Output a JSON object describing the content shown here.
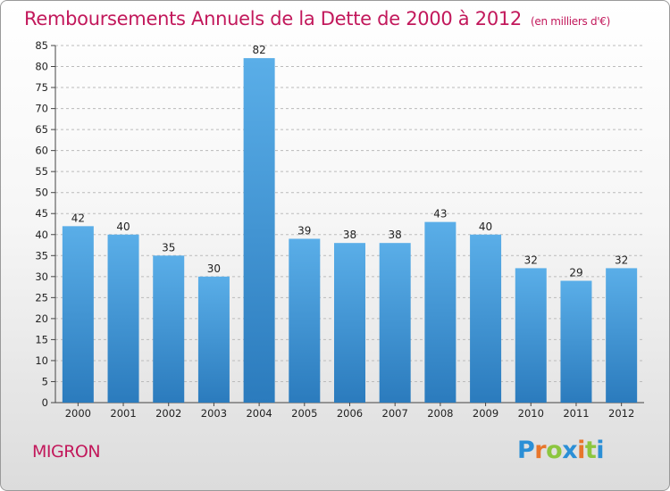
{
  "header": {
    "title": "Remboursements Annuels de la Dette de 2000 à 2012",
    "subtitle": "(en milliers d'€)"
  },
  "footer": {
    "commune": "MIGRON",
    "brand": "Proxiti",
    "brand_letters": [
      {
        "ch": "P",
        "color": "#2b8fd6"
      },
      {
        "ch": "r",
        "color": "#e8762b"
      },
      {
        "ch": "o",
        "color": "#8cc63f"
      },
      {
        "ch": "x",
        "color": "#2b8fd6"
      },
      {
        "ch": "i",
        "color": "#e8762b"
      },
      {
        "ch": "t",
        "color": "#8cc63f"
      },
      {
        "ch": "i",
        "color": "#2b8fd6"
      }
    ]
  },
  "colors": {
    "title": "#c2185b",
    "bar_top": "#5aaee8",
    "bar_bottom": "#2b7bbd",
    "grid": "#bbbbbb",
    "axis_text": "#222222"
  },
  "chart_data": {
    "type": "bar",
    "title": "Remboursements Annuels de la Dette de 2000 à 2012",
    "subtitle": "(en milliers d'€)",
    "xlabel": "",
    "ylabel": "",
    "categories": [
      "2000",
      "2001",
      "2002",
      "2003",
      "2004",
      "2005",
      "2006",
      "2007",
      "2008",
      "2009",
      "2010",
      "2011",
      "2012"
    ],
    "values": [
      42,
      40,
      35,
      30,
      82,
      39,
      38,
      38,
      43,
      40,
      32,
      29,
      32
    ],
    "ylim": [
      0,
      85
    ],
    "ytick_step": 5,
    "grid": true,
    "data_labels": true
  }
}
